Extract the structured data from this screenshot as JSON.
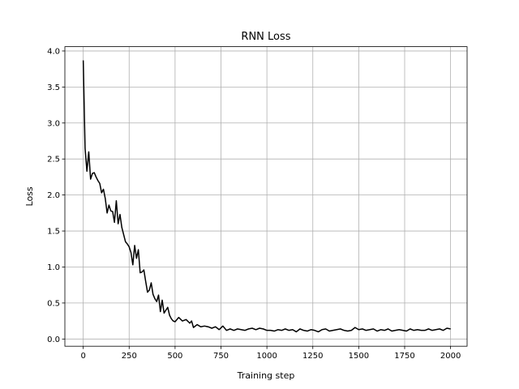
{
  "chart_data": {
    "type": "line",
    "title": "RNN Loss",
    "xlabel": "Training step",
    "ylabel": "Loss",
    "xlim": [
      -100,
      2090
    ],
    "ylim": [
      -0.1,
      4.06
    ],
    "x_ticks": [
      0,
      250,
      500,
      750,
      1000,
      1250,
      1500,
      1750,
      2000
    ],
    "x_tick_labels": [
      "0",
      "250",
      "500",
      "750",
      "1000",
      "1250",
      "1500",
      "1750",
      "2000"
    ],
    "y_ticks": [
      0.0,
      0.5,
      1.0,
      1.5,
      2.0,
      2.5,
      3.0,
      3.5,
      4.0
    ],
    "y_tick_labels": [
      "0.0",
      "0.5",
      "1.0",
      "1.5",
      "2.0",
      "2.5",
      "3.0",
      "3.5",
      "4.0"
    ],
    "grid": true,
    "series": [
      {
        "color": "#000000",
        "x": [
          0,
          10,
          20,
          30,
          40,
          50,
          60,
          70,
          80,
          90,
          100,
          110,
          120,
          130,
          140,
          150,
          160,
          170,
          180,
          190,
          200,
          210,
          220,
          230,
          240,
          250,
          260,
          270,
          280,
          290,
          300,
          310,
          320,
          330,
          340,
          350,
          360,
          370,
          380,
          390,
          400,
          410,
          420,
          430,
          440,
          450,
          460,
          470,
          480,
          490,
          500,
          520,
          540,
          560,
          580,
          590,
          600,
          620,
          640,
          660,
          680,
          700,
          720,
          740,
          760,
          780,
          800,
          820,
          840,
          860,
          880,
          900,
          920,
          940,
          960,
          980,
          1000,
          1020,
          1040,
          1060,
          1080,
          1100,
          1120,
          1140,
          1160,
          1180,
          1200,
          1220,
          1240,
          1260,
          1280,
          1300,
          1320,
          1340,
          1360,
          1380,
          1400,
          1420,
          1440,
          1460,
          1480,
          1500,
          1520,
          1540,
          1560,
          1580,
          1600,
          1620,
          1640,
          1660,
          1680,
          1700,
          1720,
          1740,
          1760,
          1780,
          1800,
          1820,
          1840,
          1860,
          1880,
          1900,
          1920,
          1940,
          1960,
          1980,
          2000
        ],
        "y": [
          3.87,
          2.65,
          2.33,
          2.6,
          2.22,
          2.3,
          2.31,
          2.25,
          2.2,
          2.16,
          2.03,
          2.08,
          1.95,
          1.75,
          1.86,
          1.78,
          1.77,
          1.62,
          1.92,
          1.6,
          1.73,
          1.55,
          1.45,
          1.35,
          1.32,
          1.28,
          1.2,
          1.03,
          1.3,
          1.12,
          1.24,
          0.92,
          0.93,
          0.96,
          0.8,
          0.65,
          0.68,
          0.78,
          0.62,
          0.56,
          0.52,
          0.61,
          0.38,
          0.54,
          0.36,
          0.4,
          0.44,
          0.33,
          0.28,
          0.25,
          0.24,
          0.3,
          0.25,
          0.27,
          0.22,
          0.25,
          0.16,
          0.2,
          0.17,
          0.18,
          0.17,
          0.15,
          0.17,
          0.13,
          0.18,
          0.12,
          0.14,
          0.12,
          0.14,
          0.13,
          0.12,
          0.14,
          0.15,
          0.13,
          0.15,
          0.14,
          0.12,
          0.12,
          0.11,
          0.13,
          0.12,
          0.14,
          0.12,
          0.13,
          0.1,
          0.14,
          0.12,
          0.11,
          0.13,
          0.12,
          0.1,
          0.13,
          0.14,
          0.11,
          0.12,
          0.13,
          0.14,
          0.12,
          0.11,
          0.12,
          0.16,
          0.13,
          0.14,
          0.12,
          0.13,
          0.14,
          0.11,
          0.13,
          0.12,
          0.14,
          0.11,
          0.12,
          0.13,
          0.12,
          0.11,
          0.14,
          0.12,
          0.13,
          0.12,
          0.12,
          0.14,
          0.12,
          0.13,
          0.14,
          0.12,
          0.15,
          0.14
        ]
      }
    ]
  }
}
